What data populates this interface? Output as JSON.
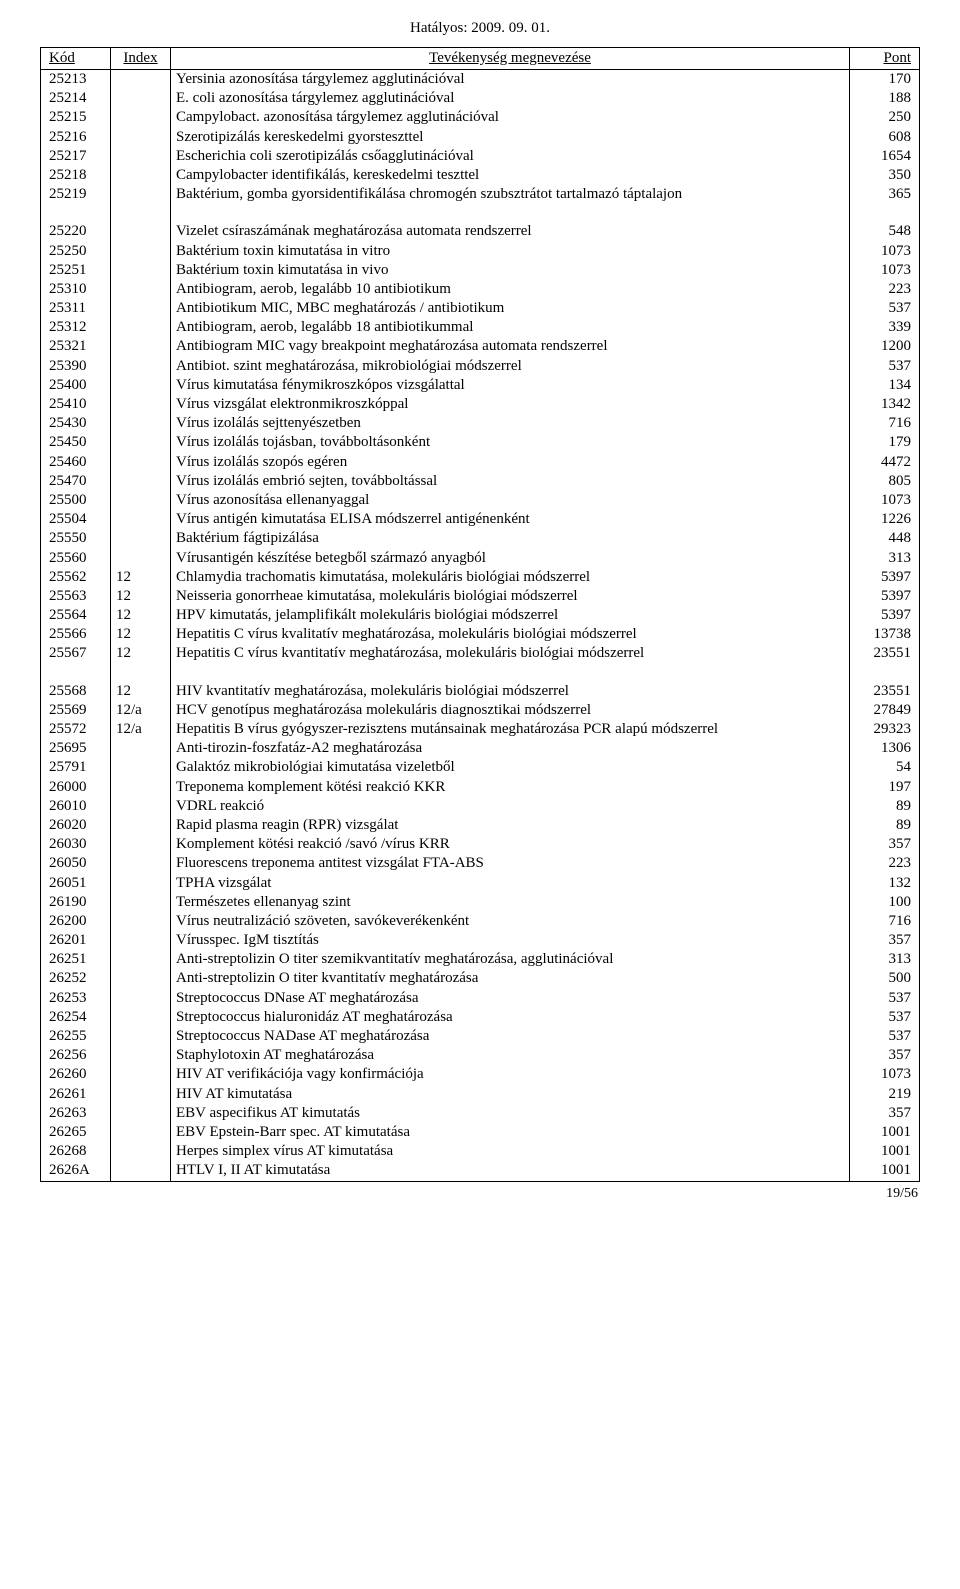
{
  "header_date": "Hatályos: 2009. 09. 01.",
  "columns": {
    "kod": "Kód",
    "index": "Index",
    "name": "Tevékenység megnevezése",
    "pont": "Pont"
  },
  "rows": [
    {
      "kod": "25213",
      "index": "",
      "name": "Yersinia azonosítása tárgylemez agglutinációval",
      "pont": "170"
    },
    {
      "kod": "25214",
      "index": "",
      "name": "E. coli azonosítása tárgylemez agglutinációval",
      "pont": "188"
    },
    {
      "kod": "25215",
      "index": "",
      "name": "Campylobact. azonosítása tárgylemez agglutinációval",
      "pont": "250"
    },
    {
      "kod": "25216",
      "index": "",
      "name": "Szerotipizálás kereskedelmi gyorsteszttel",
      "pont": "608"
    },
    {
      "kod": "25217",
      "index": "",
      "name": "Escherichia coli szerotipizálás csőagglutinációval",
      "pont": "1654"
    },
    {
      "kod": "25218",
      "index": "",
      "name": "Campylobacter identifikálás, kereskedelmi teszttel",
      "pont": "350"
    },
    {
      "kod": "25219",
      "index": "",
      "name": "Baktérium, gomba gyorsidentifikálása chromogén szubsztrátot tartalmazó táptalajon",
      "pont": "365"
    },
    {
      "spacer": true
    },
    {
      "kod": "25220",
      "index": "",
      "name": "Vizelet csíraszámának meghatározása automata rendszerrel",
      "pont": "548"
    },
    {
      "kod": "25250",
      "index": "",
      "name": "Baktérium toxin kimutatása in vitro",
      "pont": "1073"
    },
    {
      "kod": "25251",
      "index": "",
      "name": "Baktérium toxin kimutatása in vivo",
      "pont": "1073"
    },
    {
      "kod": "25310",
      "index": "",
      "name": "Antibiogram, aerob, legalább 10 antibiotikum",
      "pont": "223"
    },
    {
      "kod": "25311",
      "index": "",
      "name": "Antibiotikum MIC, MBC meghatározás / antibiotikum",
      "pont": "537"
    },
    {
      "kod": "25312",
      "index": "",
      "name": "Antibiogram, aerob, legalább 18 antibiotikummal",
      "pont": "339"
    },
    {
      "kod": "25321",
      "index": "",
      "name": "Antibiogram MIC vagy breakpoint meghatározása automata rendszerrel",
      "pont": "1200"
    },
    {
      "kod": "25390",
      "index": "",
      "name": "Antibiot. szint meghatározása, mikrobiológiai módszerrel",
      "pont": "537"
    },
    {
      "kod": "25400",
      "index": "",
      "name": "Vírus kimutatása fénymikroszkópos vizsgálattal",
      "pont": "134"
    },
    {
      "kod": "25410",
      "index": "",
      "name": "Vírus vizsgálat elektronmikroszkóppal",
      "pont": "1342"
    },
    {
      "kod": "25430",
      "index": "",
      "name": "Vírus izolálás sejttenyészetben",
      "pont": "716"
    },
    {
      "kod": "25450",
      "index": "",
      "name": "Vírus izolálás tojásban, továbboltásonként",
      "pont": "179"
    },
    {
      "kod": "25460",
      "index": "",
      "name": "Vírus izolálás szopós egéren",
      "pont": "4472"
    },
    {
      "kod": "25470",
      "index": "",
      "name": "Vírus izolálás embrió sejten, továbboltással",
      "pont": "805"
    },
    {
      "kod": "25500",
      "index": "",
      "name": "Vírus azonosítása ellenanyaggal",
      "pont": "1073"
    },
    {
      "kod": "25504",
      "index": "",
      "name": "Vírus antigén kimutatása ELISA módszerrel antigénenként",
      "pont": "1226"
    },
    {
      "kod": "25550",
      "index": "",
      "name": "Baktérium fágtipizálása",
      "pont": "448"
    },
    {
      "kod": "25560",
      "index": "",
      "name": "Vírusantigén készítése betegből származó anyagból",
      "pont": "313"
    },
    {
      "kod": "25562",
      "index": "12",
      "name": "Chlamydia trachomatis kimutatása, molekuláris biológiai módszerrel",
      "pont": "5397"
    },
    {
      "kod": "25563",
      "index": "12",
      "name": "Neisseria gonorrheae kimutatása, molekuláris biológiai módszerrel",
      "pont": "5397"
    },
    {
      "kod": "25564",
      "index": "12",
      "name": "HPV kimutatás, jelamplifikált molekuláris biológiai módszerrel",
      "pont": "5397"
    },
    {
      "kod": "25566",
      "index": "12",
      "name": "Hepatitis C vírus kvalitatív meghatározása, molekuláris biológiai módszerrel",
      "pont": "13738"
    },
    {
      "kod": "25567",
      "index": "12",
      "name": "Hepatitis C vírus kvantitatív meghatározása, molekuláris biológiai módszerrel",
      "pont": "23551"
    },
    {
      "spacer": true
    },
    {
      "kod": "25568",
      "index": "12",
      "name": "HIV kvantitatív meghatározása, molekuláris biológiai módszerrel",
      "pont": "23551"
    },
    {
      "kod": "25569",
      "index": "12/a",
      "name": "HCV genotípus meghatározása molekuláris diagnosztikai módszerrel",
      "pont": "27849"
    },
    {
      "kod": "25572",
      "index": "12/a",
      "name": "Hepatitis B vírus gyógyszer-rezisztens mutánsainak meghatározása PCR alapú módszerrel",
      "pont": "29323"
    },
    {
      "kod": "25695",
      "index": "",
      "name": "Anti-tirozin-foszfatáz-A2 meghatározása",
      "pont": "1306"
    },
    {
      "kod": "25791",
      "index": "",
      "name": "Galaktóz mikrobiológiai kimutatása vizeletből",
      "pont": "54"
    },
    {
      "kod": "26000",
      "index": "",
      "name": "Treponema komplement kötési reakció KKR",
      "pont": "197"
    },
    {
      "kod": "26010",
      "index": "",
      "name": "VDRL reakció",
      "pont": "89"
    },
    {
      "kod": "26020",
      "index": "",
      "name": "Rapid plasma reagin (RPR) vizsgálat",
      "pont": "89"
    },
    {
      "kod": "26030",
      "index": "",
      "name": "Komplement kötési reakció /savó /vírus KRR",
      "pont": "357"
    },
    {
      "kod": "26050",
      "index": "",
      "name": "Fluorescens treponema antitest vizsgálat FTA-ABS",
      "pont": "223"
    },
    {
      "kod": "26051",
      "index": "",
      "name": "TPHA vizsgálat",
      "pont": "132"
    },
    {
      "kod": "26190",
      "index": "",
      "name": "Természetes ellenanyag szint",
      "pont": "100"
    },
    {
      "kod": "26200",
      "index": "",
      "name": "Vírus neutralizáció szöveten, savókeverékenként",
      "pont": "716"
    },
    {
      "kod": "26201",
      "index": "",
      "name": "Vírusspec. IgM tisztítás",
      "pont": "357"
    },
    {
      "kod": "26251",
      "index": "",
      "name": "Anti-streptolizin O titer szemikvantitatív meghatározása, agglutinációval",
      "pont": "313"
    },
    {
      "kod": "26252",
      "index": "",
      "name": "Anti-streptolizin O titer kvantitatív meghatározása",
      "pont": "500"
    },
    {
      "kod": "26253",
      "index": "",
      "name": "Streptococcus DNase AT meghatározása",
      "pont": "537"
    },
    {
      "kod": "26254",
      "index": "",
      "name": "Streptococcus hialuronidáz AT meghatározása",
      "pont": "537"
    },
    {
      "kod": "26255",
      "index": "",
      "name": "Streptococcus NADase AT meghatározása",
      "pont": "537"
    },
    {
      "kod": "26256",
      "index": "",
      "name": "Staphylotoxin AT meghatározása",
      "pont": "357"
    },
    {
      "kod": "26260",
      "index": "",
      "name": "HIV AT verifikációja vagy konfirmációja",
      "pont": "1073"
    },
    {
      "kod": "26261",
      "index": "",
      "name": "HIV AT kimutatása",
      "pont": "219"
    },
    {
      "kod": "26263",
      "index": "",
      "name": "EBV aspecifikus AT kimutatás",
      "pont": "357"
    },
    {
      "kod": "26265",
      "index": "",
      "name": "EBV Epstein-Barr spec. AT kimutatása",
      "pont": "1001"
    },
    {
      "kod": "26268",
      "index": "",
      "name": "Herpes simplex vírus AT kimutatása",
      "pont": "1001"
    },
    {
      "kod": "2626A",
      "index": "",
      "name": "HTLV I, II AT kimutatása",
      "pont": "1001"
    }
  ],
  "footer": "19/56"
}
